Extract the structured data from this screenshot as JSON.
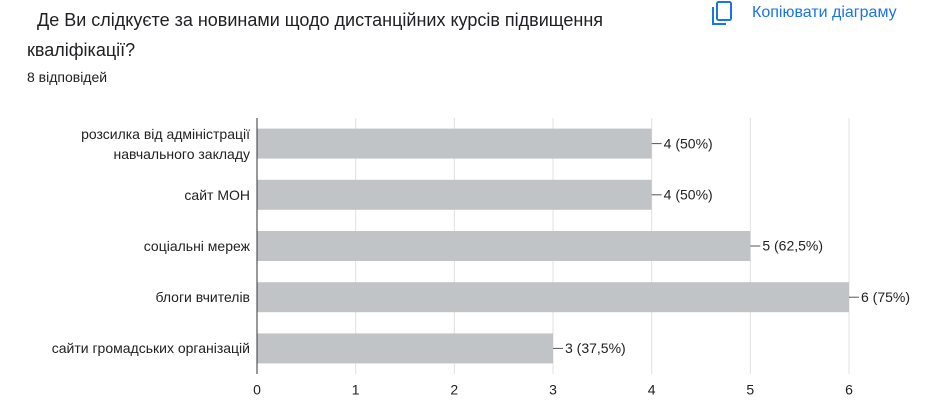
{
  "copy_button": "Копіювати діаграму",
  "chart_data": {
    "type": "hbar",
    "title": "Де Ви слідкуєте за новинами щодо дистанційних курсів підвищення кваліфікації?",
    "subtitle": "8 відповідей",
    "categories": [
      "розсилка від адміністрації навчального закладу",
      "сайт МОН",
      "соціальні мереж",
      "блоги вчителів",
      "сайти громадських організацій"
    ],
    "values": [
      4,
      4,
      5,
      6,
      3
    ],
    "value_labels": [
      "4 (50%)",
      "4 (50%)",
      "5 (62,5%)",
      "6 (75%)",
      "3 (37,5%)"
    ],
    "color": "#c1c4c7",
    "xlim": [
      0,
      6
    ],
    "xticks": [
      0,
      1,
      2,
      3,
      4,
      5,
      6
    ],
    "grid": true
  }
}
